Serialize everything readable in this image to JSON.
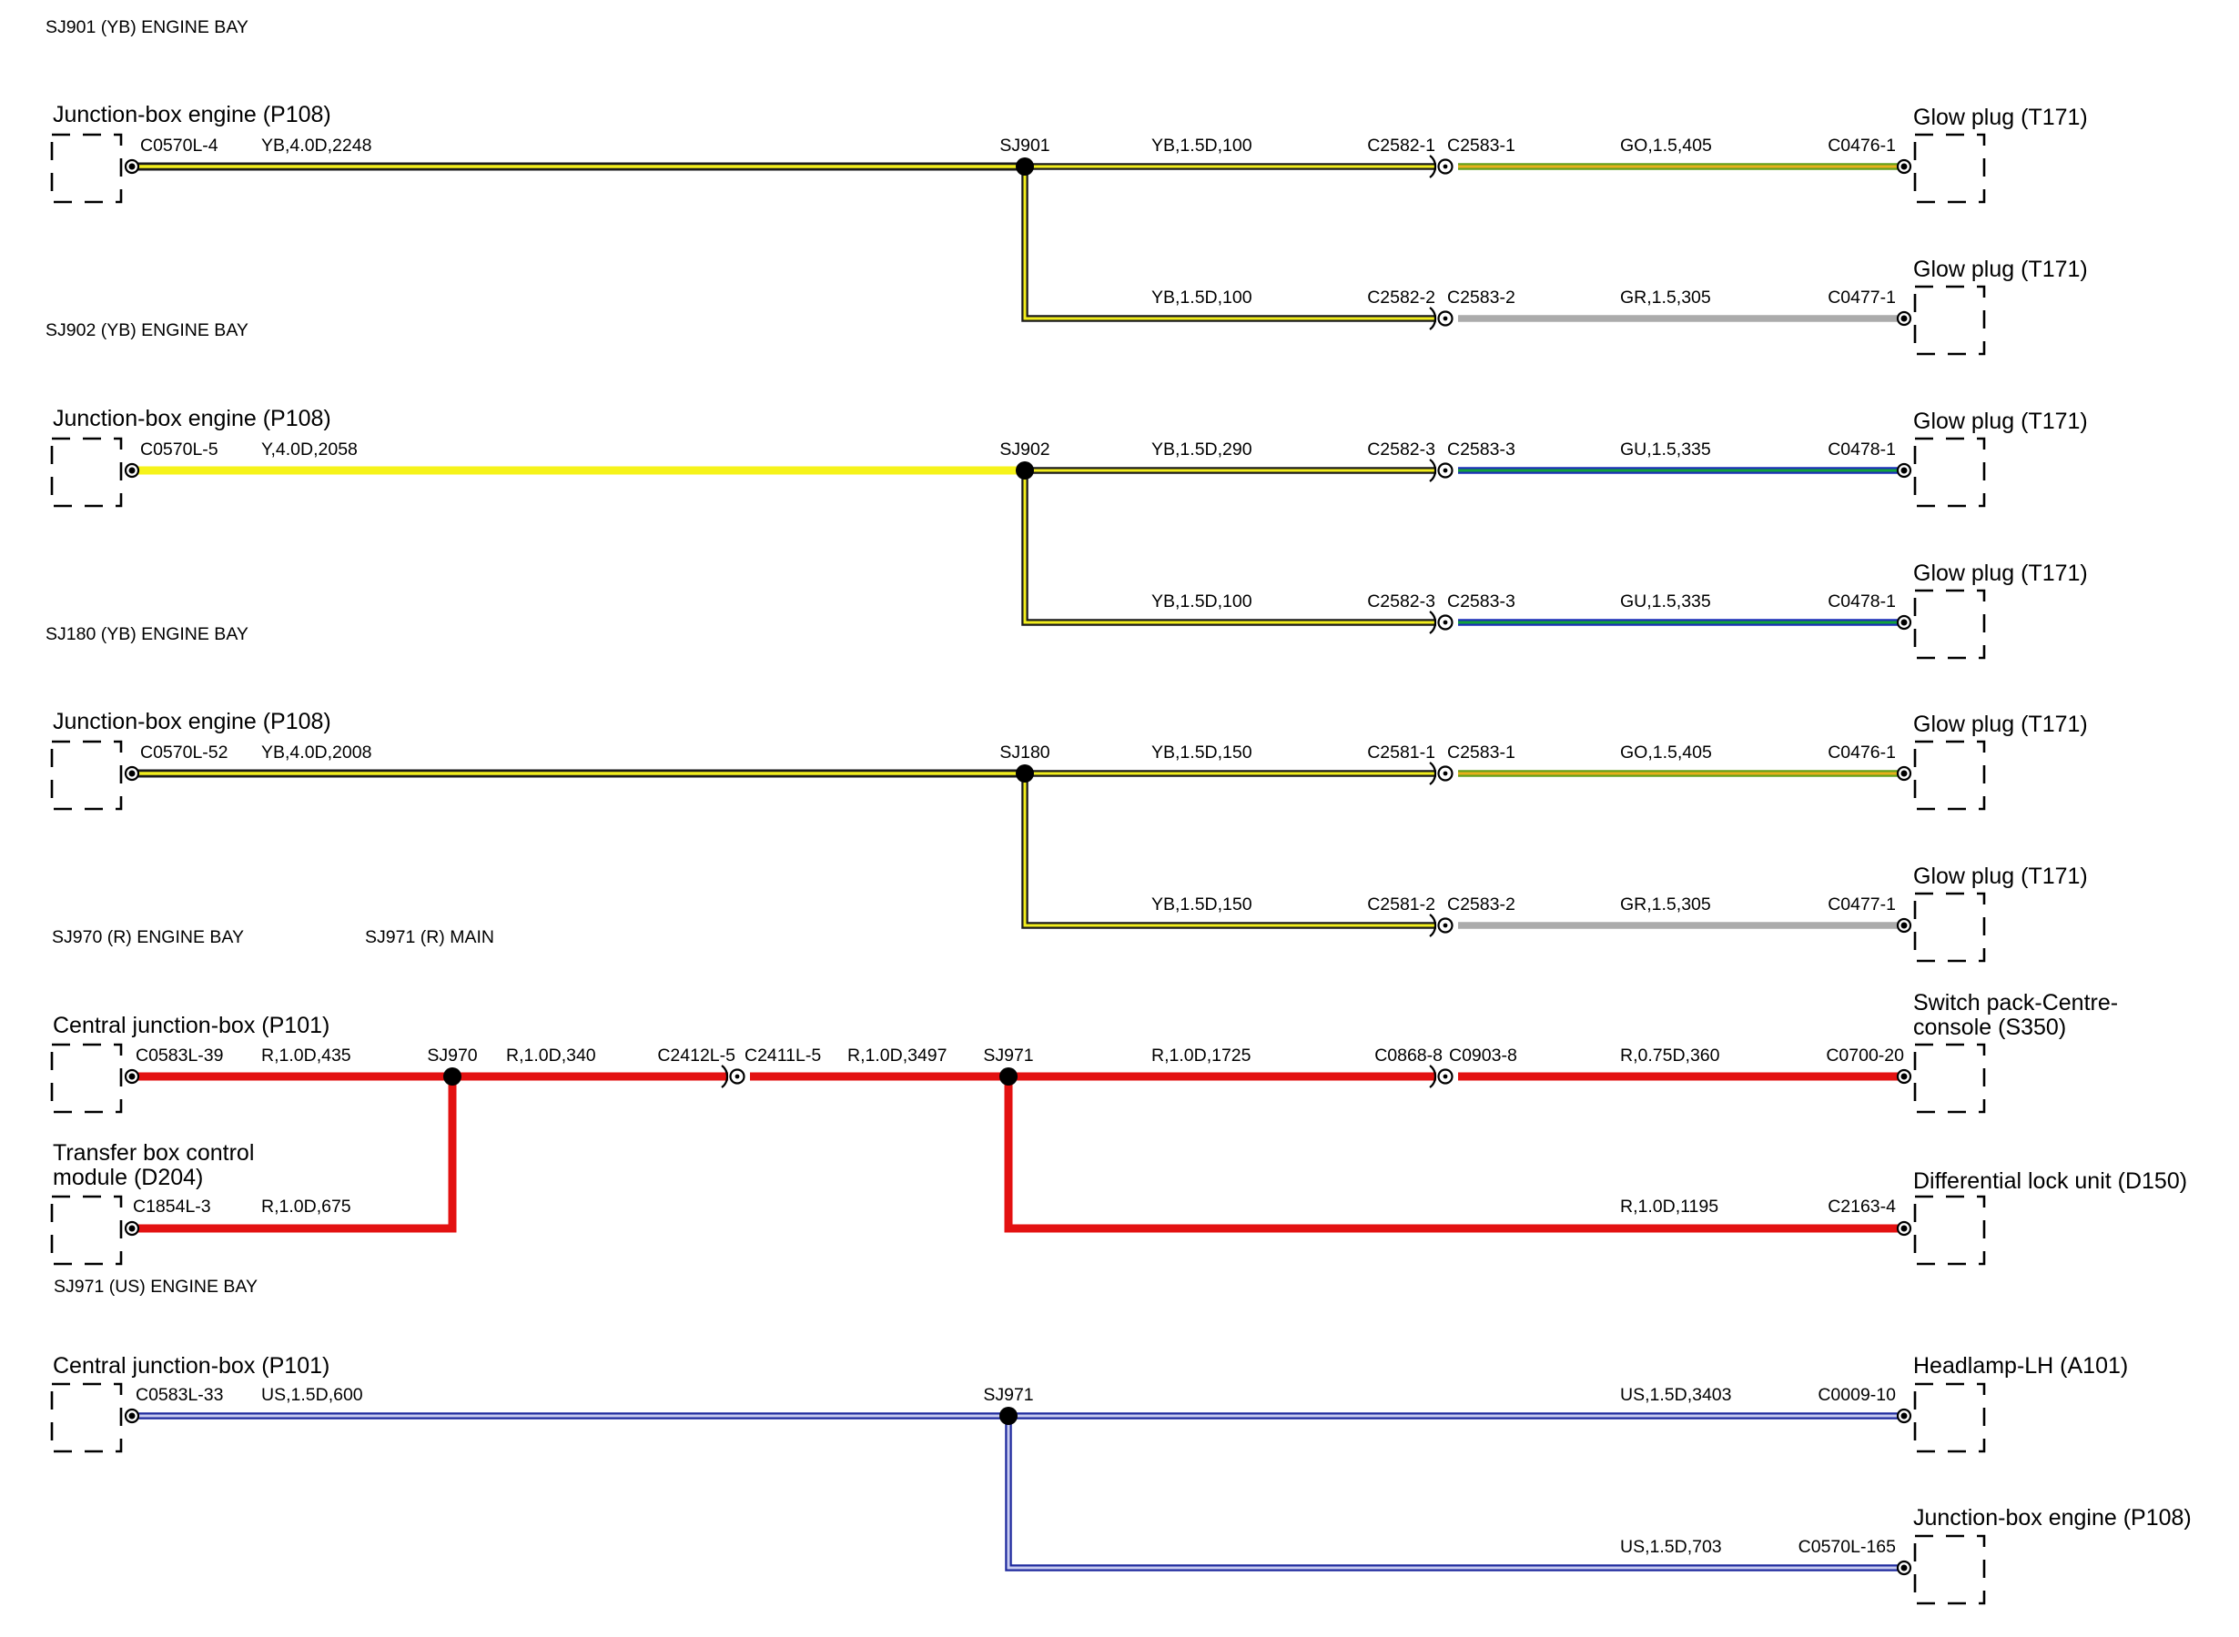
{
  "sections": [
    {
      "id": "sj901",
      "header": "SJ901 (YB) ENGINE BAY",
      "splice": "SJ901",
      "left": {
        "name": [
          "Junction-box engine (P108)"
        ],
        "connector": "C0570L-4",
        "wire": "YB,4.0D,2248",
        "color": "yb"
      },
      "branches": [
        {
          "name": [
            "Glow plug (T171)"
          ],
          "mid_wire": "YB,1.5D,100",
          "mid_color": "yb",
          "c_left": "C2582-1",
          "c_right": "C2583-1",
          "end_wire": "GO,1.5,405",
          "end_color": "go",
          "end_conn": "C0476-1"
        },
        {
          "name": [
            "Glow plug (T171)"
          ],
          "mid_wire": "YB,1.5D,100",
          "mid_color": "yb",
          "c_left": "C2582-2",
          "c_right": "C2583-2",
          "end_wire": "GR,1.5,305",
          "end_color": "gr",
          "end_conn": "C0477-1"
        }
      ]
    },
    {
      "id": "sj902",
      "header": "SJ902 (YB) ENGINE BAY",
      "splice": "SJ902",
      "left": {
        "name": [
          "Junction-box engine (P108)"
        ],
        "connector": "C0570L-5",
        "wire": "Y,4.0D,2058",
        "color": "y"
      },
      "branches": [
        {
          "name": [
            "Glow plug (T171)"
          ],
          "mid_wire": "YB,1.5D,290",
          "mid_color": "yb",
          "c_left": "C2582-3",
          "c_right": "C2583-3",
          "end_wire": "GU,1.5,335",
          "end_color": "gu",
          "end_conn": "C0478-1"
        },
        {
          "name": [
            "Glow plug (T171)"
          ],
          "mid_wire": "YB,1.5D,100",
          "mid_color": "yb",
          "c_left": "C2582-3",
          "c_right": "C2583-3",
          "end_wire": "GU,1.5,335",
          "end_color": "gu",
          "end_conn": "C0478-1"
        }
      ]
    },
    {
      "id": "sj180",
      "header": "SJ180 (YB) ENGINE BAY",
      "splice": "SJ180",
      "left": {
        "name": [
          "Junction-box engine (P108)"
        ],
        "connector": "C0570L-52",
        "wire": "YB,4.0D,2008",
        "color": "yb"
      },
      "branches": [
        {
          "name": [
            "Glow plug (T171)"
          ],
          "mid_wire": "YB,1.5D,150",
          "mid_color": "yb",
          "c_left": "C2581-1",
          "c_right": "C2583-1",
          "end_wire": "GO,1.5,405",
          "end_color": "go",
          "end_conn": "C0476-1"
        },
        {
          "name": [
            "Glow plug (T171)"
          ],
          "mid_wire": "YB,1.5D,150",
          "mid_color": "yb",
          "c_left": "C2581-2",
          "c_right": "C2583-2",
          "end_wire": "GR,1.5,305",
          "end_color": "gr",
          "end_conn": "C0477-1"
        }
      ]
    }
  ],
  "red_section": {
    "header_left": "SJ970 (R) ENGINE BAY",
    "header_right": "SJ971 (R) MAIN",
    "top_left": {
      "name": [
        "Central junction-box (P101)"
      ],
      "connector": "C0583L-39",
      "wire": "R,1.0D,435"
    },
    "bottom_left": {
      "name": [
        "Transfer box control",
        "module (D204)"
      ],
      "connector": "C1854L-3",
      "wire": "R,1.0D,675"
    },
    "splice_a": "SJ970",
    "wire_a": "R,1.0D,340",
    "inline_left": "C2412L-5",
    "inline_right": "C2411L-5",
    "wire_b": "R,1.0D,3497",
    "splice_b": "SJ971",
    "wire_c": "R,1.0D,1725",
    "inline2_left": "C0868-8",
    "inline2_right": "C0903-8",
    "wire_d": "R,0.75D,360",
    "top_right": {
      "name": [
        "Switch pack-Centre-",
        "console (S350)"
      ],
      "connector": "C0700-20"
    },
    "bottom_right": {
      "name": [
        "Differential lock unit (D150)"
      ],
      "connector": "C2163-4",
      "wire": "R,1.0D,1195"
    }
  },
  "blue_section": {
    "header": "SJ971 (US) ENGINE BAY",
    "left": {
      "name": [
        "Central junction-box (P101)"
      ],
      "connector": "C0583L-33",
      "wire": "US,1.5D,600"
    },
    "splice": "SJ971",
    "top_right": {
      "name": [
        "Headlamp-LH (A101)"
      ],
      "connector": "C0009-10",
      "wire": "US,1.5D,3403"
    },
    "bottom_right": {
      "name": [
        "Junction-box engine (P108)"
      ],
      "connector": "C0570L-165",
      "wire": "US,1.5D,703"
    }
  },
  "wire_colors": {
    "yb": {
      "outer": "#1a1a1a",
      "inner": "#f2ee1e"
    },
    "y": {
      "outer": "#f6f31a",
      "inner": "#f6f31a"
    },
    "go": {
      "outer": "#63a01c",
      "inner": "#e8b01c"
    },
    "gr": {
      "outer": "#ababab",
      "inner": "#ababab"
    },
    "gu": {
      "outer": "#1a2fb8",
      "inner": "#11a33a"
    },
    "r": {
      "outer": "#e31111",
      "inner": "#e31111"
    },
    "us": {
      "outer": "#1f2a9e",
      "inner": "#c8ccf0"
    }
  }
}
